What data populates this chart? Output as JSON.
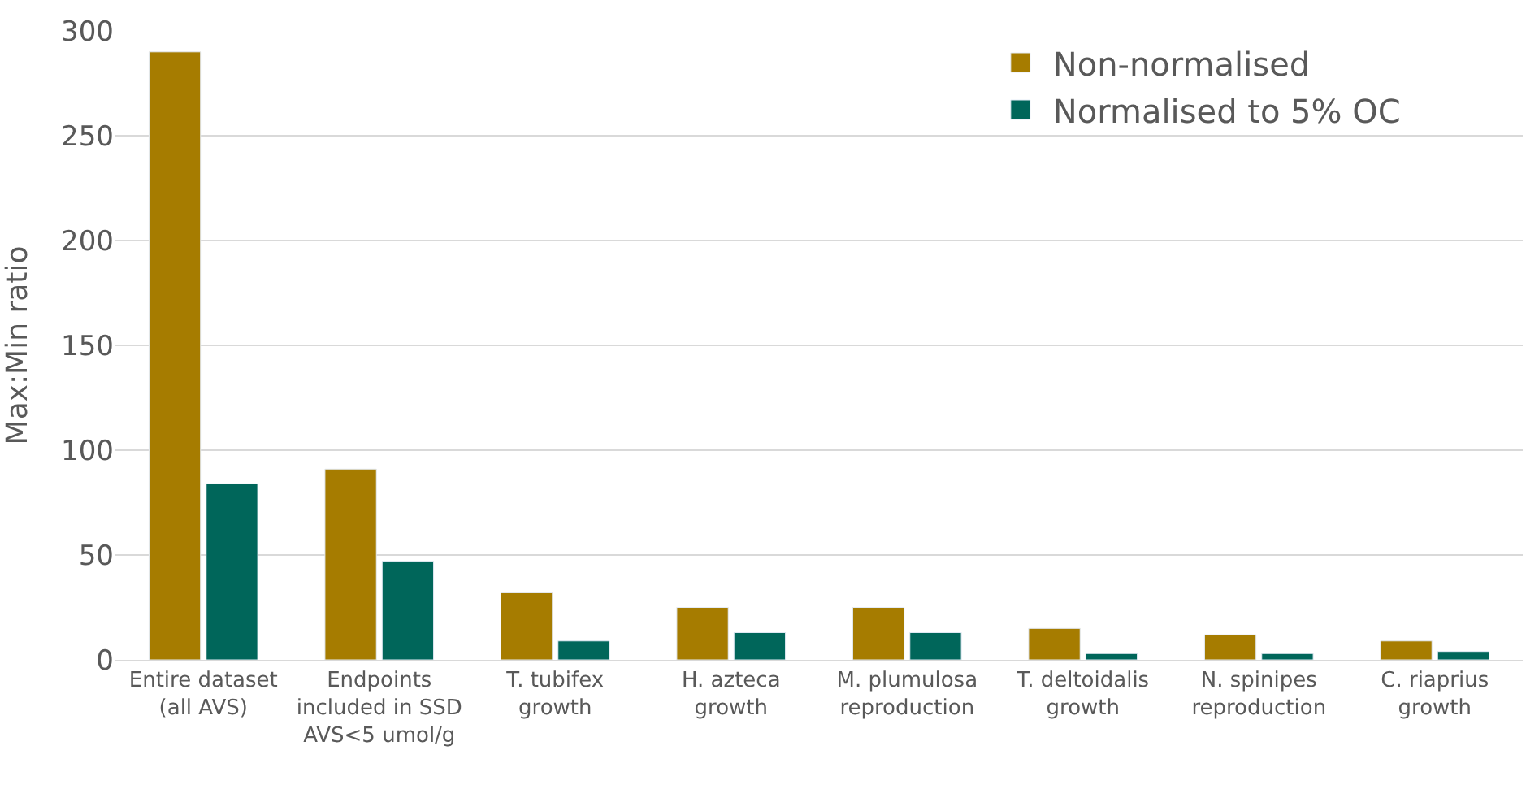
{
  "chart_data": {
    "type": "bar",
    "ylabel": "Max:Min ratio",
    "categories": [
      "Entire dataset\n(all AVS)",
      "Endpoints\nincluded in SSD\nAVS<5 umol/g",
      "T. tubifex\ngrowth",
      "H. azteca\ngrowth",
      "M. plumulosa\nreproduction",
      "T. deltoidalis\ngrowth",
      "N. spinipes\nreproduction",
      "C. riaprius\ngrowth"
    ],
    "series": [
      {
        "name": "Non-normalised",
        "color": "#a67c00",
        "values": [
          290,
          91,
          32,
          25,
          25,
          15,
          12,
          9
        ]
      },
      {
        "name": "Normalised to 5% OC",
        "color": "#00665a",
        "values": [
          84,
          47,
          9,
          13,
          13,
          3,
          3,
          4
        ]
      }
    ],
    "ylim": [
      0,
      300
    ],
    "yticks": [
      0,
      50,
      100,
      150,
      200,
      250,
      300
    ],
    "grid": "y",
    "legend": "top right"
  }
}
